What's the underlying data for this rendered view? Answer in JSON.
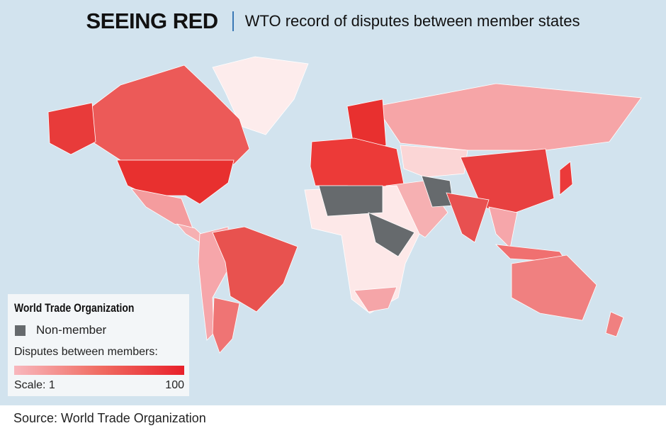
{
  "header": {
    "title": "SEEING RED",
    "subtitle": "WTO record of disputes between member states"
  },
  "legend": {
    "title": "World Trade Organization",
    "non_member_label": "Non-member",
    "disputes_label": "Disputes between members:",
    "scale_min_label": "Scale: 1",
    "scale_max_label": "100",
    "scale_min": 1,
    "scale_max": 100
  },
  "source": "Source: World Trade Organization",
  "colors": {
    "ocean": "#d2e3ee",
    "non_member": "#666a6d",
    "low": "#fde8e9",
    "light": "#f6a6aa",
    "mid": "#ee6a66",
    "high": "#e8302f"
  }
}
